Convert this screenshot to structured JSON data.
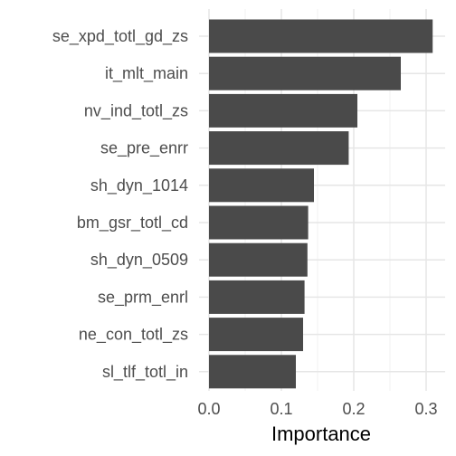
{
  "chart_data": {
    "type": "bar",
    "orientation": "horizontal",
    "categories": [
      "se_xpd_totl_gd_zs",
      "it_mlt_main",
      "nv_ind_totl_zs",
      "se_pre_enrr",
      "sh_dyn_1014",
      "bm_gsr_totl_cd",
      "sh_dyn_0509",
      "se_prm_enrl",
      "ne_con_totl_zs",
      "sl_tlf_totl_in"
    ],
    "values": [
      0.309,
      0.265,
      0.205,
      0.193,
      0.145,
      0.137,
      0.136,
      0.132,
      0.13,
      0.12
    ],
    "xlabel": "Importance",
    "ylabel": "",
    "xlim": [
      0,
      0.31
    ],
    "xticks": [
      "0.0",
      "0.1",
      "0.2",
      "0.3"
    ],
    "grid": true,
    "colors": {
      "bar": "#4a4a4a",
      "grid_major": "#e6e6e6",
      "grid_minor": "#f2f2f2",
      "background": "#ffffff"
    }
  }
}
